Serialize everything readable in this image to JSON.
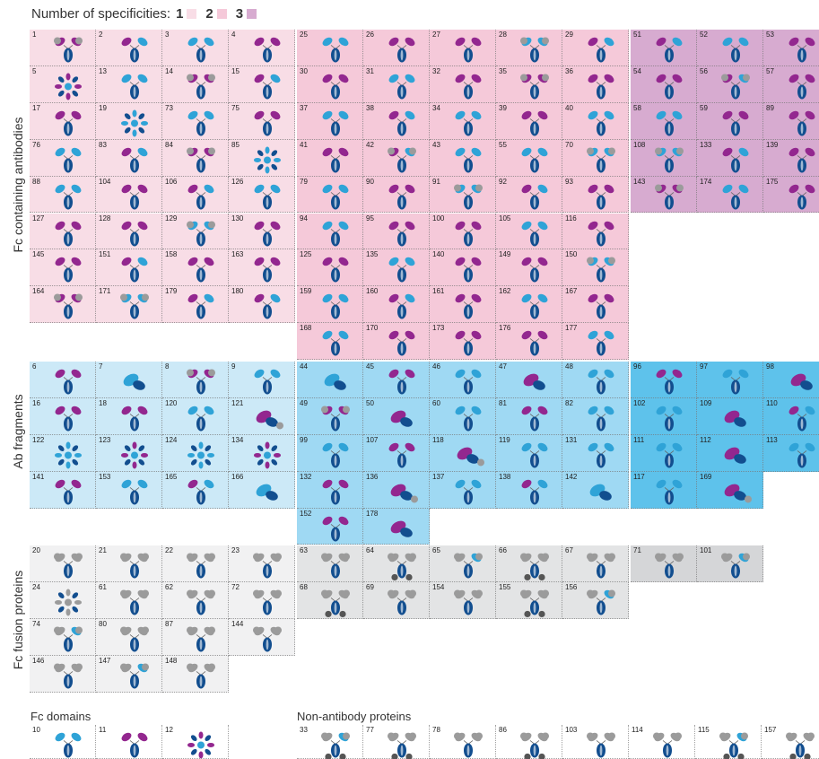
{
  "legend": {
    "label": "Number of specificities:",
    "items": [
      "1",
      "2",
      "3"
    ]
  },
  "colors": {
    "pink1": "#f8dde6",
    "pink2": "#f5c9d9",
    "pink3": "#d7abd0",
    "blue1": "#cce9f7",
    "blue2": "#9fd9f3",
    "blue3": "#5ec2eb",
    "grey1": "#f1f1f2",
    "grey2": "#e3e4e5",
    "grey3": "#d5d6d8",
    "navy": "#124e8f",
    "magenta": "#93278f",
    "cyan": "#2fa3d7",
    "greyball": "#9b9b9b",
    "green": "#7cc576"
  },
  "axis_labels": {
    "fc": "Fc containing antibodies",
    "ab": "Ab fragments",
    "fusion": "Fc fusion proteins"
  },
  "sections": {
    "fcdomains": "Fc domains",
    "nonab": "Non-antibody proteins"
  },
  "grid": {
    "fc": [
      {
        "t": "pink1",
        "cells": [
          "1",
          "2",
          "3",
          "4"
        ]
      },
      {
        "t": "pink1",
        "cells": [
          "5",
          "13",
          "14",
          "15"
        ]
      },
      {
        "t": "pink1",
        "cells": [
          "17",
          "19",
          "73",
          "75"
        ]
      },
      {
        "t": "pink1",
        "cells": [
          "76",
          "83",
          "84",
          "85"
        ]
      },
      {
        "t": "pink1",
        "cells": [
          "88",
          "104",
          "106",
          "126"
        ]
      },
      {
        "t": "pink1",
        "cells": [
          "127",
          "128",
          "129",
          "130"
        ]
      },
      {
        "t": "pink1",
        "cells": [
          "145",
          "151",
          "158",
          "163"
        ]
      },
      {
        "t": "pink1",
        "cells": [
          "164",
          "171",
          "179",
          "180"
        ]
      },
      {
        "t": "pink2",
        "cells": [
          "25",
          "26",
          "27",
          "28",
          "29"
        ]
      },
      {
        "t": "pink2",
        "cells": [
          "30",
          "31",
          "32",
          "35",
          "36"
        ]
      },
      {
        "t": "pink2",
        "cells": [
          "37",
          "38",
          "34",
          "39",
          "40"
        ]
      },
      {
        "t": "pink2",
        "cells": [
          "41",
          "42",
          "43",
          "55",
          "70"
        ]
      },
      {
        "t": "pink2",
        "cells": [
          "79",
          "90",
          "91",
          "92",
          "93"
        ]
      },
      {
        "t": "pink2",
        "cells": [
          "94",
          "95",
          "100",
          "105",
          "116"
        ]
      },
      {
        "t": "pink2",
        "cells": [
          "125",
          "135",
          "140",
          "149",
          "150"
        ]
      },
      {
        "t": "pink2",
        "cells": [
          "159",
          "160",
          "161",
          "162",
          "167"
        ]
      },
      {
        "t": "pink2",
        "cells": [
          "168",
          "170",
          "173",
          "176",
          "177"
        ]
      },
      {
        "t": "pink3",
        "cells": [
          "51",
          "52",
          "53"
        ]
      },
      {
        "t": "pink3",
        "cells": [
          "54",
          "56",
          "57"
        ]
      },
      {
        "t": "pink3",
        "cells": [
          "58",
          "59",
          "89"
        ]
      },
      {
        "t": "pink3",
        "cells": [
          "108",
          "133",
          "139"
        ]
      },
      {
        "t": "pink3",
        "cells": [
          "143",
          "174",
          "175"
        ]
      }
    ],
    "ab": [
      {
        "t": "blue1",
        "cells": [
          "6",
          "7",
          "8",
          "9"
        ]
      },
      {
        "t": "blue1",
        "cells": [
          "16",
          "18",
          "120",
          "121"
        ]
      },
      {
        "t": "blue1",
        "cells": [
          "122",
          "123",
          "124",
          "134"
        ]
      },
      {
        "t": "blue1",
        "cells": [
          "141",
          "153",
          "165",
          "166"
        ]
      },
      {
        "t": "blue2",
        "cells": [
          "44",
          "45",
          "46",
          "47",
          "48"
        ]
      },
      {
        "t": "blue2",
        "cells": [
          "49",
          "50",
          "60",
          "81",
          "82"
        ]
      },
      {
        "t": "blue2",
        "cells": [
          "99",
          "107",
          "118",
          "119",
          "131"
        ]
      },
      {
        "t": "blue2",
        "cells": [
          "132",
          "136",
          "137",
          "138",
          "142"
        ]
      },
      {
        "t": "blue2",
        "cells": [
          "152",
          "178"
        ]
      },
      {
        "t": "blue3",
        "cells": [
          "96",
          "97",
          "98"
        ]
      },
      {
        "t": "blue3",
        "cells": [
          "102",
          "109",
          "110"
        ]
      },
      {
        "t": "blue3",
        "cells": [
          "111",
          "112",
          "113"
        ]
      },
      {
        "t": "blue3",
        "cells": [
          "117",
          "169"
        ]
      }
    ],
    "fusion": [
      {
        "t": "grey1",
        "cells": [
          "20",
          "21",
          "22",
          "23"
        ]
      },
      {
        "t": "grey1",
        "cells": [
          "24",
          "61",
          "62",
          "72"
        ]
      },
      {
        "t": "grey1",
        "cells": [
          "74",
          "80",
          "87",
          "144"
        ]
      },
      {
        "t": "grey1",
        "cells": [
          "146",
          "147",
          "148"
        ]
      },
      {
        "t": "grey2",
        "cells": [
          "63",
          "64",
          "65",
          "66",
          "67"
        ]
      },
      {
        "t": "grey2",
        "cells": [
          "68",
          "69",
          "154",
          "155",
          "156"
        ]
      },
      {
        "t": "grey3",
        "cells": [
          "71",
          "101"
        ]
      }
    ],
    "fcdomains": [
      "10",
      "11",
      "12"
    ],
    "nonab": [
      "33",
      "77",
      "78",
      "86",
      "103",
      "114",
      "115",
      "157"
    ]
  }
}
